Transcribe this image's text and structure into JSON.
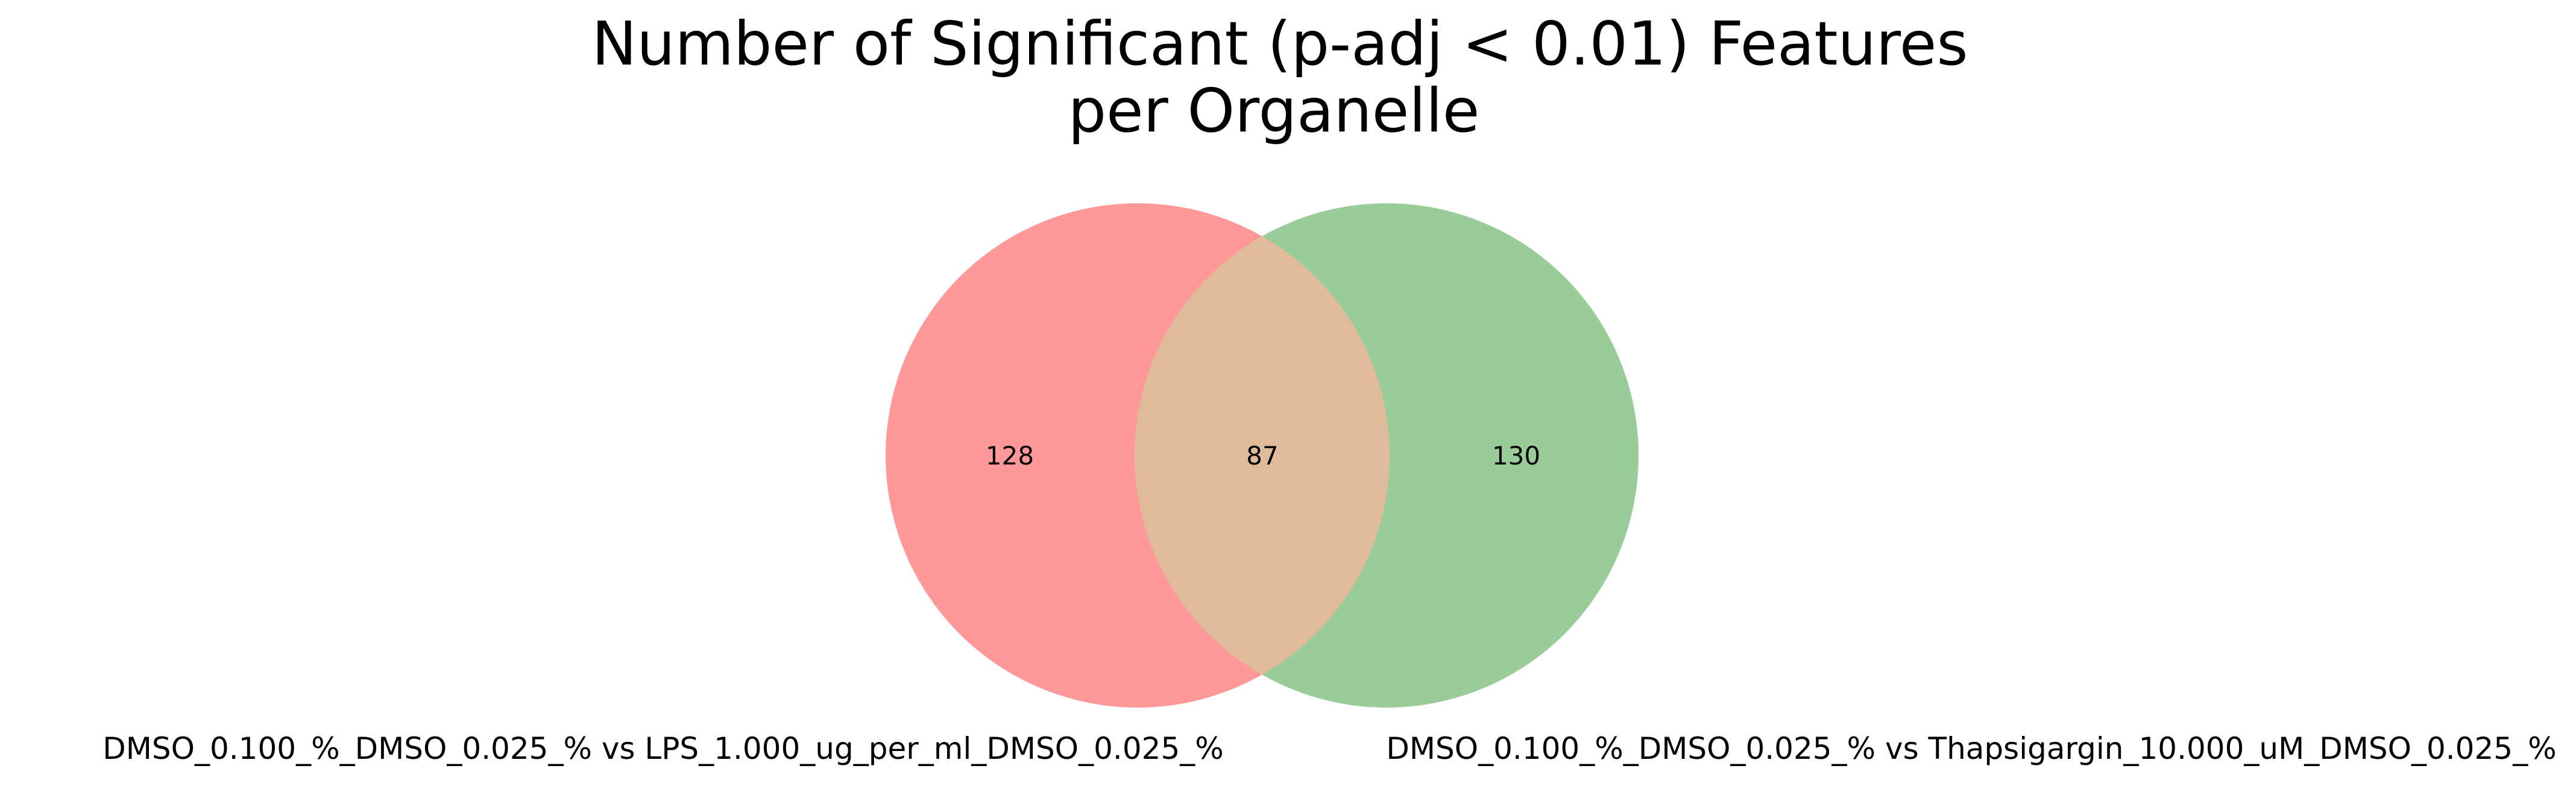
{
  "chart_data": {
    "type": "venn",
    "title": [
      "Number of Significant (p-adj < 0.01) Features",
      "per Organelle"
    ],
    "sets": [
      {
        "label": "DMSO_0.100_%_DMSO_0.025_% vs LPS_1.000_ug_per_ml_DMSO_0.025_%",
        "color": "#ff9999"
      },
      {
        "label": "DMSO_0.100_%_DMSO_0.025_% vs Thapsigargin_10.000_uM_DMSO_0.025_%",
        "color": "#99cc99"
      }
    ],
    "regions": {
      "only_a": 128,
      "intersection": 87,
      "only_b": 130
    },
    "overlap_color": "#e0bb99"
  }
}
